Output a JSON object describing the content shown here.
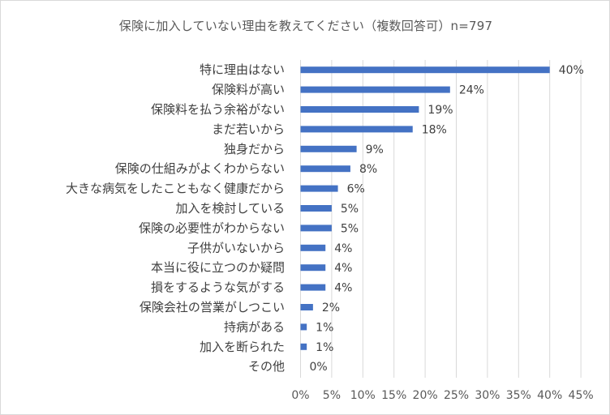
{
  "chart_data": {
    "type": "bar",
    "orientation": "horizontal",
    "title": "保険に加入していない理由を教えてください（複数回答可）n=797",
    "categories": [
      "特に理由はない",
      "保険料が高い",
      "保険料を払う余裕がない",
      "まだ若いから",
      "独身だから",
      "保険の仕組みがよくわからない",
      "大きな病気をしたこともなく健康だから",
      "加入を検討している",
      "保険の必要性がわからない",
      "子供がいないから",
      "本当に役に立つのか疑問",
      "損をするような気がする",
      "保険会社の営業がしつこい",
      "持病がある",
      "加入を断られた",
      "その他"
    ],
    "values": [
      40,
      24,
      19,
      18,
      9,
      8,
      6,
      5,
      5,
      4,
      4,
      4,
      2,
      1,
      1,
      0
    ],
    "value_labels": [
      "40%",
      "24%",
      "19%",
      "18%",
      "9%",
      "8%",
      "6%",
      "5%",
      "5%",
      "4%",
      "4%",
      "4%",
      "2%",
      "1%",
      "1%",
      "0%"
    ],
    "xlim": [
      0,
      45
    ],
    "x_ticks": [
      "0%",
      "5%",
      "10%",
      "15%",
      "20%",
      "25%",
      "30%",
      "35%",
      "40%",
      "45%"
    ],
    "grid": true,
    "bar_color": "#4472C4",
    "grid_color": "#d9d9d9"
  }
}
